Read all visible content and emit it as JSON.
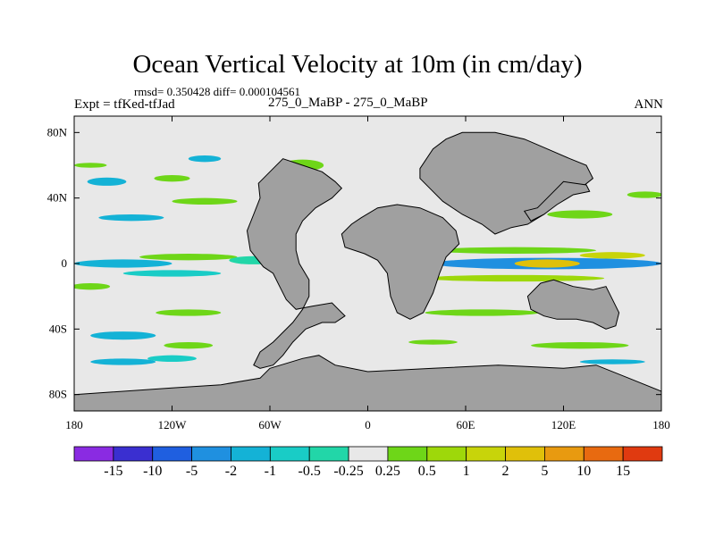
{
  "chart_data": {
    "type": "heatmap",
    "title": "Ocean Vertical Velocity at 10m (in cm/day)",
    "stats_line": "rmsd= 0.350428 diff= 0.000104561",
    "left_label": "Expt = tfKed-tfJad",
    "center_label": "275_0_MaBP - 275_0_MaBP",
    "right_label": "ANN",
    "x_ticks": [
      {
        "value": -180,
        "label": "180"
      },
      {
        "value": -120,
        "label": "120W"
      },
      {
        "value": -60,
        "label": "60W"
      },
      {
        "value": 0,
        "label": "0"
      },
      {
        "value": 60,
        "label": "60E"
      },
      {
        "value": 120,
        "label": "120E"
      },
      {
        "value": 180,
        "label": "180"
      }
    ],
    "y_ticks": [
      {
        "value": 80,
        "label": "80N"
      },
      {
        "value": 40,
        "label": "40N"
      },
      {
        "value": 0,
        "label": "0"
      },
      {
        "value": -40,
        "label": "40S"
      },
      {
        "value": -80,
        "label": "80S"
      }
    ],
    "xlim": [
      -180,
      180
    ],
    "ylim": [
      -90,
      90
    ],
    "colorbar": {
      "colors": [
        "#8a2be2",
        "#3a2fd0",
        "#1f5fe0",
        "#1f90e0",
        "#14b2d6",
        "#19ccc6",
        "#22d6a8",
        "#e8e8e8",
        "#6ed618",
        "#9ed80a",
        "#c8d40a",
        "#e0c00a",
        "#e89a10",
        "#e86a10",
        "#e03a10"
      ],
      "labels": [
        "-15",
        "-10",
        "-5",
        "-2",
        "-1",
        "-0.5",
        "-0.25",
        "0.25",
        "0.5",
        "1",
        "2",
        "5",
        "10",
        "15"
      ]
    },
    "land_color": "#a0a0a0",
    "ocean_background_color": "#e8e8e8",
    "land_polygons": [
      [
        [
          -67,
          49
        ],
        [
          -58,
          58
        ],
        [
          -52,
          64
        ],
        [
          -40,
          60
        ],
        [
          -28,
          56
        ],
        [
          -20,
          50
        ],
        [
          -16,
          46
        ],
        [
          -22,
          40
        ],
        [
          -32,
          34
        ],
        [
          -40,
          26
        ],
        [
          -44,
          18
        ],
        [
          -44,
          8
        ],
        [
          -42,
          0
        ],
        [
          -36,
          -10
        ],
        [
          -36,
          -20
        ],
        [
          -40,
          -28
        ],
        [
          -46,
          -36
        ],
        [
          -52,
          -42
        ],
        [
          -58,
          -48
        ],
        [
          -66,
          -54
        ],
        [
          -70,
          -62
        ],
        [
          -66,
          -64
        ],
        [
          -58,
          -62
        ],
        [
          -52,
          -56
        ],
        [
          -46,
          -48
        ],
        [
          -38,
          -40
        ],
        [
          -28,
          -36
        ],
        [
          -20,
          -36
        ],
        [
          -14,
          -32
        ],
        [
          -22,
          -24
        ],
        [
          -34,
          -26
        ],
        [
          -44,
          -28
        ],
        [
          -50,
          -22
        ],
        [
          -54,
          -14
        ],
        [
          -58,
          -6
        ],
        [
          -64,
          -2
        ],
        [
          -72,
          8
        ],
        [
          -74,
          20
        ],
        [
          -70,
          30
        ],
        [
          -66,
          40
        ]
      ],
      [
        [
          -4,
          28
        ],
        [
          6,
          34
        ],
        [
          18,
          36
        ],
        [
          32,
          34
        ],
        [
          46,
          28
        ],
        [
          54,
          20
        ],
        [
          56,
          12
        ],
        [
          48,
          4
        ],
        [
          44,
          -6
        ],
        [
          40,
          -18
        ],
        [
          34,
          -30
        ],
        [
          26,
          -34
        ],
        [
          18,
          -30
        ],
        [
          14,
          -20
        ],
        [
          12,
          -6
        ],
        [
          6,
          2
        ],
        [
          -2,
          6
        ],
        [
          -14,
          10
        ],
        [
          -16,
          18
        ],
        [
          -10,
          24
        ]
      ],
      [
        [
          32,
          58
        ],
        [
          40,
          70
        ],
        [
          48,
          76
        ],
        [
          58,
          80
        ],
        [
          78,
          80
        ],
        [
          96,
          76
        ],
        [
          110,
          70
        ],
        [
          124,
          64
        ],
        [
          134,
          60
        ],
        [
          138,
          52
        ],
        [
          128,
          44
        ],
        [
          118,
          38
        ],
        [
          108,
          30
        ],
        [
          98,
          24
        ],
        [
          88,
          22
        ],
        [
          78,
          18
        ],
        [
          70,
          24
        ],
        [
          58,
          30
        ],
        [
          46,
          38
        ],
        [
          38,
          46
        ],
        [
          32,
          52
        ]
      ],
      [
        [
          96,
          32
        ],
        [
          104,
          34
        ],
        [
          110,
          40
        ],
        [
          116,
          46
        ],
        [
          120,
          50
        ],
        [
          134,
          48
        ],
        [
          136,
          44
        ],
        [
          126,
          42
        ],
        [
          116,
          36
        ],
        [
          108,
          30
        ],
        [
          100,
          26
        ]
      ],
      [
        [
          98,
          -20
        ],
        [
          106,
          -12
        ],
        [
          114,
          -10
        ],
        [
          126,
          -14
        ],
        [
          138,
          -16
        ],
        [
          146,
          -14
        ],
        [
          150,
          -22
        ],
        [
          154,
          -30
        ],
        [
          152,
          -38
        ],
        [
          146,
          -40
        ],
        [
          138,
          -36
        ],
        [
          128,
          -34
        ],
        [
          116,
          -34
        ],
        [
          108,
          -32
        ],
        [
          100,
          -28
        ]
      ],
      [
        [
          -60,
          -64
        ],
        [
          -40,
          -58
        ],
        [
          -30,
          -56
        ],
        [
          -20,
          -62
        ],
        [
          0,
          -66
        ],
        [
          40,
          -64
        ],
        [
          80,
          -62
        ],
        [
          120,
          -64
        ],
        [
          140,
          -62
        ],
        [
          160,
          -70
        ],
        [
          180,
          -78
        ],
        [
          180,
          -90
        ],
        [
          -180,
          -90
        ],
        [
          -180,
          -80
        ],
        [
          -120,
          -76
        ],
        [
          -90,
          -74
        ],
        [
          -66,
          -70
        ]
      ]
    ],
    "anomaly_patches": [
      {
        "lon": -150,
        "lat": 0,
        "w": 60,
        "h": 5,
        "color": "#14b2d6"
      },
      {
        "lon": -110,
        "lat": 4,
        "w": 60,
        "h": 4,
        "color": "#6ed618"
      },
      {
        "lon": -120,
        "lat": -6,
        "w": 60,
        "h": 4,
        "color": "#19ccc6"
      },
      {
        "lon": -70,
        "lat": 2,
        "w": 30,
        "h": 5,
        "color": "#22d6a8"
      },
      {
        "lon": 110,
        "lat": 0,
        "w": 140,
        "h": 7,
        "color": "#1f90e0"
      },
      {
        "lon": 110,
        "lat": 0,
        "w": 40,
        "h": 5,
        "color": "#e0c00a"
      },
      {
        "lon": 90,
        "lat": 8,
        "w": 100,
        "h": 4,
        "color": "#6ed618"
      },
      {
        "lon": 90,
        "lat": -9,
        "w": 110,
        "h": 4,
        "color": "#9ed80a"
      },
      {
        "lon": 150,
        "lat": 5,
        "w": 40,
        "h": 4,
        "color": "#c8d40a"
      },
      {
        "lon": -160,
        "lat": 50,
        "w": 24,
        "h": 5,
        "color": "#14b2d6"
      },
      {
        "lon": -120,
        "lat": 52,
        "w": 22,
        "h": 4,
        "color": "#6ed618"
      },
      {
        "lon": -40,
        "lat": 60,
        "w": 26,
        "h": 7,
        "color": "#6ed618"
      },
      {
        "lon": -145,
        "lat": 28,
        "w": 40,
        "h": 4,
        "color": "#14b2d6"
      },
      {
        "lon": -100,
        "lat": 38,
        "w": 40,
        "h": 4,
        "color": "#6ed618"
      },
      {
        "lon": 130,
        "lat": 30,
        "w": 40,
        "h": 5,
        "color": "#6ed618"
      },
      {
        "lon": 170,
        "lat": 42,
        "w": 22,
        "h": 4,
        "color": "#6ed618"
      },
      {
        "lon": -150,
        "lat": -44,
        "w": 40,
        "h": 5,
        "color": "#14b2d6"
      },
      {
        "lon": -110,
        "lat": -30,
        "w": 40,
        "h": 4,
        "color": "#6ed618"
      },
      {
        "lon": -170,
        "lat": -14,
        "w": 24,
        "h": 4,
        "color": "#6ed618"
      },
      {
        "lon": -150,
        "lat": -60,
        "w": 40,
        "h": 4,
        "color": "#14b2d6"
      },
      {
        "lon": -120,
        "lat": -58,
        "w": 30,
        "h": 4,
        "color": "#19ccc6"
      },
      {
        "lon": -90,
        "lat": -78,
        "w": 40,
        "h": 3,
        "color": "#19ccc6"
      },
      {
        "lon": -150,
        "lat": -80,
        "w": 30,
        "h": 3,
        "color": "#19ccc6"
      },
      {
        "lon": -110,
        "lat": -50,
        "w": 30,
        "h": 4,
        "color": "#6ed618"
      },
      {
        "lon": 70,
        "lat": -30,
        "w": 70,
        "h": 4,
        "color": "#6ed618"
      },
      {
        "lon": 130,
        "lat": -50,
        "w": 60,
        "h": 4,
        "color": "#6ed618"
      },
      {
        "lon": 150,
        "lat": -60,
        "w": 40,
        "h": 3,
        "color": "#14b2d6"
      },
      {
        "lon": 40,
        "lat": -48,
        "w": 30,
        "h": 3,
        "color": "#6ed618"
      },
      {
        "lon": -170,
        "lat": 60,
        "w": 20,
        "h": 3,
        "color": "#6ed618"
      },
      {
        "lon": -100,
        "lat": 64,
        "w": 20,
        "h": 4,
        "color": "#14b2d6"
      }
    ]
  }
}
